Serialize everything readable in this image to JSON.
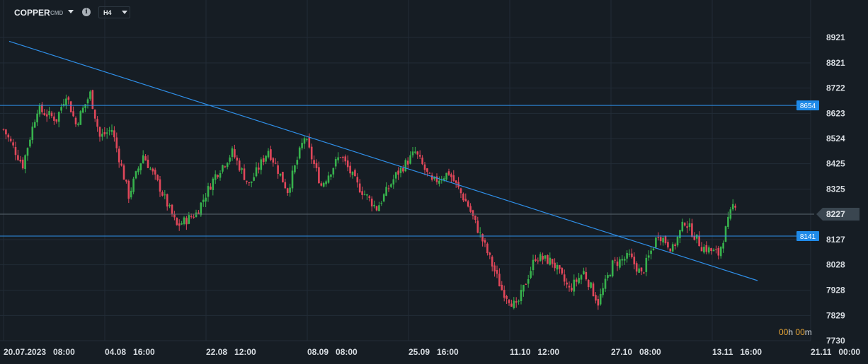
{
  "header": {
    "symbol": "COPPER",
    "symbol_sub": "CMD",
    "info_icon": "info-icon",
    "timeframe": "H4"
  },
  "timer": {
    "h": "00",
    "h_unit": "h",
    "m": "00",
    "m_unit": "m"
  },
  "colors": {
    "background": "#161d24",
    "grid": "#222c36",
    "up": "#37b24d",
    "down": "#e0475a",
    "line": "#2f8fe8",
    "badge": "#1f8ae8",
    "price_label": "#3a4650"
  },
  "chart_data": {
    "type": "candlestick",
    "y_ticks": [
      8921,
      8821,
      8722,
      8623,
      8524,
      8425,
      8325,
      8227,
      8127,
      8028,
      7928,
      7829,
      7730
    ],
    "x_ticks": [
      "20.07.2023  08:00",
      "04.08  16:00",
      "22.08  12:00",
      "08.09  08:00",
      "25.09  16:00",
      "11.10  12:00",
      "27.10  08:00",
      "13.11  16:00",
      "21.11  00:00"
    ],
    "ylim": [
      7730,
      8921
    ],
    "horizontal_lines": [
      {
        "label": "8654",
        "value": 8654
      },
      {
        "label": "8141",
        "value": 8141
      }
    ],
    "current_price": {
      "label": "8227",
      "value": 8227
    },
    "trendlines": [
      {
        "from": [
          "20.07.2023",
          8906
        ],
        "to": [
          "16.11.2023",
          7966
        ]
      }
    ],
    "close_path": [
      [
        0,
        8560
      ],
      [
        8,
        8420
      ],
      [
        14,
        8640
      ],
      [
        22,
        8600
      ],
      [
        26,
        8700
      ],
      [
        30,
        8580
      ],
      [
        36,
        8700
      ],
      [
        40,
        8530
      ],
      [
        45,
        8560
      ],
      [
        52,
        8300
      ],
      [
        58,
        8460
      ],
      [
        65,
        8330
      ],
      [
        72,
        8180
      ],
      [
        80,
        8230
      ],
      [
        88,
        8380
      ],
      [
        95,
        8470
      ],
      [
        102,
        8340
      ],
      [
        110,
        8480
      ],
      [
        118,
        8320
      ],
      [
        125,
        8530
      ],
      [
        132,
        8340
      ],
      [
        140,
        8460
      ],
      [
        147,
        8340
      ],
      [
        155,
        8250
      ],
      [
        163,
        8380
      ],
      [
        171,
        8470
      ],
      [
        178,
        8350
      ],
      [
        185,
        8390
      ],
      [
        193,
        8260
      ],
      [
        200,
        8100
      ],
      [
        207,
        7930
      ],
      [
        213,
        7860
      ],
      [
        221,
        8060
      ],
      [
        228,
        8040
      ],
      [
        235,
        7930
      ],
      [
        241,
        8000
      ],
      [
        247,
        7880
      ],
      [
        253,
        8030
      ],
      [
        260,
        8060
      ],
      [
        265,
        7990
      ],
      [
        272,
        8150
      ],
      [
        278,
        8090
      ],
      [
        283,
        8200
      ],
      [
        290,
        8100
      ],
      [
        297,
        8070
      ],
      [
        303,
        8260
      ],
      [
        307,
        8300
      ],
      [
        313,
        8220
      ]
    ],
    "n_candles": 314
  }
}
